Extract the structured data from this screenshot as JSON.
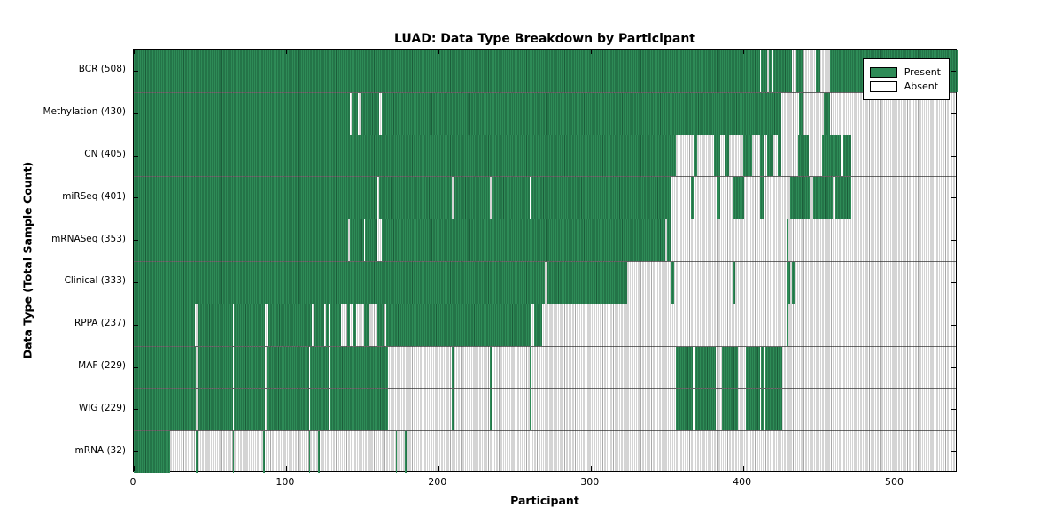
{
  "chart_data": {
    "type": "heatmap",
    "title": "LUAD: Data Type Breakdown by Participant",
    "xlabel": "Participant",
    "ylabel": "Data Type (Total Sample Count)",
    "xlim": [
      0,
      541
    ],
    "xticks": [
      0,
      100,
      200,
      300,
      400,
      500
    ],
    "grid": false,
    "legend_position": "upper right",
    "colors": {
      "present_fill": "#2e8b57",
      "present_edge": "#1b5e3a",
      "absent_fill": "#ffffff",
      "absent_edge": "#a9a9a9",
      "frame": "#000000"
    },
    "legend": [
      {
        "label": "Present",
        "color": "#2e8b57"
      },
      {
        "label": "Absent",
        "color": "#ffffff"
      }
    ],
    "rows": [
      {
        "label": "BCR (508)",
        "data_type": "BCR",
        "count": 508,
        "present_segments": [
          [
            0,
            411
          ],
          [
            412,
            416
          ],
          [
            417,
            419
          ],
          [
            420,
            432
          ],
          [
            435,
            439
          ],
          [
            448,
            451
          ],
          [
            457,
            541
          ]
        ]
      },
      {
        "label": "Methylation (430)",
        "data_type": "Methylation",
        "count": 430,
        "present_segments": [
          [
            0,
            142
          ],
          [
            143,
            147
          ],
          [
            149,
            161
          ],
          [
            163,
            425
          ],
          [
            437,
            439
          ],
          [
            453,
            457
          ]
        ]
      },
      {
        "label": "CN (405)",
        "data_type": "CN",
        "count": 405,
        "present_segments": [
          [
            0,
            356
          ],
          [
            368,
            370
          ],
          [
            381,
            385
          ],
          [
            388,
            391
          ],
          [
            400,
            406
          ],
          [
            411,
            414
          ],
          [
            416,
            420
          ],
          [
            423,
            425
          ],
          [
            436,
            443
          ],
          [
            452,
            464
          ],
          [
            466,
            471
          ]
        ]
      },
      {
        "label": "miRSeq (401)",
        "data_type": "miRSeq",
        "count": 401,
        "present_segments": [
          [
            0,
            160
          ],
          [
            161,
            209
          ],
          [
            210,
            234
          ],
          [
            235,
            260
          ],
          [
            261,
            353
          ],
          [
            366,
            368
          ],
          [
            383,
            385
          ],
          [
            394,
            401
          ],
          [
            411,
            414
          ],
          [
            431,
            444
          ],
          [
            446,
            459
          ],
          [
            461,
            471
          ]
        ]
      },
      {
        "label": "mRNASeq (353)",
        "data_type": "mRNASeq",
        "count": 353,
        "present_segments": [
          [
            0,
            141
          ],
          [
            142,
            151
          ],
          [
            152,
            160
          ],
          [
            163,
            349
          ],
          [
            350,
            353
          ],
          [
            429,
            430
          ]
        ]
      },
      {
        "label": "Clinical (333)",
        "data_type": "Clinical",
        "count": 333,
        "present_segments": [
          [
            0,
            270
          ],
          [
            271,
            324
          ],
          [
            353,
            355
          ],
          [
            394,
            395
          ],
          [
            429,
            431
          ],
          [
            432,
            434
          ]
        ]
      },
      {
        "label": "RPPA (237)",
        "data_type": "RPPA",
        "count": 237,
        "present_segments": [
          [
            0,
            40
          ],
          [
            42,
            65
          ],
          [
            66,
            86
          ],
          [
            88,
            117
          ],
          [
            118,
            125
          ],
          [
            126,
            128
          ],
          [
            129,
            136
          ],
          [
            140,
            142
          ],
          [
            144,
            146
          ],
          [
            151,
            154
          ],
          [
            160,
            164
          ],
          [
            166,
            261
          ],
          [
            263,
            268
          ],
          [
            429,
            430
          ]
        ]
      },
      {
        "label": "MAF (229)",
        "data_type": "MAF",
        "count": 229,
        "present_segments": [
          [
            0,
            41
          ],
          [
            42,
            65
          ],
          [
            66,
            86
          ],
          [
            87,
            115
          ],
          [
            116,
            128
          ],
          [
            129,
            167
          ],
          [
            209,
            210
          ],
          [
            234,
            235
          ],
          [
            260,
            261
          ],
          [
            356,
            367
          ],
          [
            369,
            382
          ],
          [
            386,
            397
          ],
          [
            402,
            411
          ],
          [
            412,
            414
          ],
          [
            415,
            426
          ]
        ]
      },
      {
        "label": "WIG (229)",
        "data_type": "WIG",
        "count": 229,
        "present_segments": [
          [
            0,
            41
          ],
          [
            42,
            65
          ],
          [
            66,
            86
          ],
          [
            87,
            115
          ],
          [
            116,
            128
          ],
          [
            129,
            167
          ],
          [
            209,
            210
          ],
          [
            234,
            235
          ],
          [
            260,
            261
          ],
          [
            356,
            367
          ],
          [
            369,
            382
          ],
          [
            386,
            397
          ],
          [
            402,
            411
          ],
          [
            412,
            414
          ],
          [
            415,
            426
          ]
        ]
      },
      {
        "label": "mRNA (32)",
        "data_type": "mRNA",
        "count": 32,
        "present_segments": [
          [
            0,
            24
          ],
          [
            41,
            42
          ],
          [
            65,
            66
          ],
          [
            85,
            86
          ],
          [
            115,
            116
          ],
          [
            121,
            122
          ],
          [
            154,
            155
          ],
          [
            172,
            173
          ],
          [
            178,
            179
          ]
        ]
      }
    ]
  }
}
